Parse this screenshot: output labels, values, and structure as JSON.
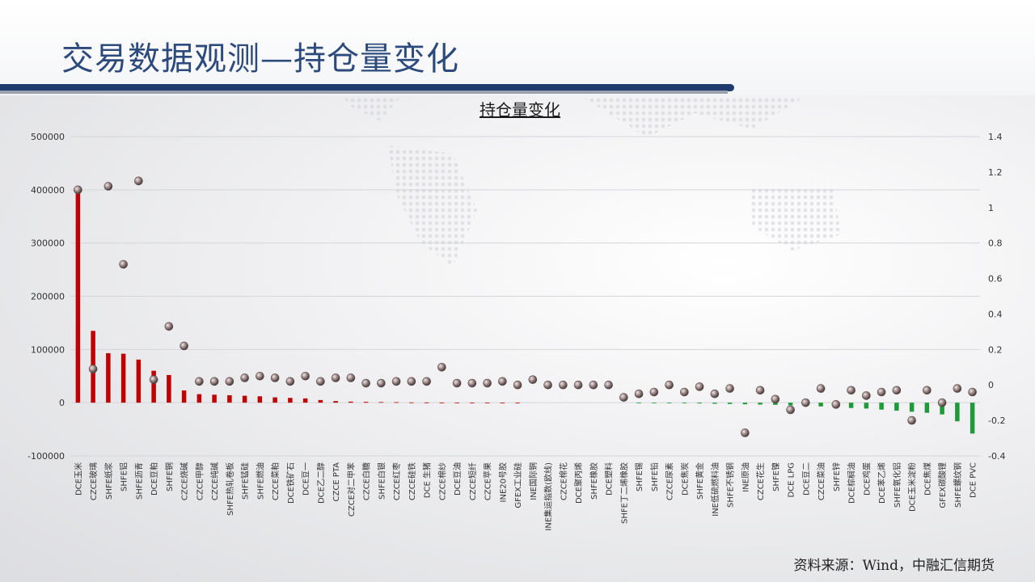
{
  "page": {
    "title": "交易数据观测—持仓量变化",
    "source": "资料来源：Wind，中融汇信期货"
  },
  "colors": {
    "positive_bar": "#c00000",
    "negative_bar": "#1e9a3a",
    "dot": "#8c7878",
    "title": "#2d4a7d",
    "band": "#1f3b6d"
  },
  "chart_data": {
    "type": "bar",
    "title": "持仓量变化",
    "xlabel": "",
    "ylabel": "",
    "ylim": [
      -100000,
      500000
    ],
    "y2lim": [
      -0.4,
      1.4
    ],
    "y_ticks": [
      500000,
      400000,
      300000,
      200000,
      100000,
      0,
      -100000
    ],
    "y2_ticks": [
      "1.4",
      "1.2",
      "1",
      "0.8",
      "0.6",
      "0.4",
      "0.2",
      "0",
      "-0.2",
      "-0.4"
    ],
    "categories": [
      "DCE玉米",
      "CZCE玻璃",
      "SHFE纸浆",
      "SHFE铝",
      "SHFE沥青",
      "DCE豆粕",
      "SHFE铜",
      "CZCE烧碱",
      "CZCE甲醇",
      "CZCE纯碱",
      "SHFE热轧卷板",
      "SHFE锰硅",
      "SHFE燃油",
      "CZCE菜粕",
      "DCE铁矿石",
      "DCE豆一",
      "DCE乙二醇",
      "CZCE PTA",
      "CZCE对二甲苯",
      "CZCE白糖",
      "SHFE白银",
      "CZCE红枣",
      "CZCE硅铁",
      "DCE 生猪",
      "CZCE棉纱",
      "DCE豆油",
      "CZCE短纤",
      "CZCE苹果",
      "INE20号胶",
      "GFEX工业硅",
      "INE国际铜",
      "INE集运指数(欧线)",
      "CZCE棉花",
      "DCE聚丙烯",
      "SHFE橡胶",
      "DCE塑料",
      "SHFE丁二烯橡胶",
      "SHFE锡",
      "SHFE铅",
      "CZCE尿素",
      "DCE焦炭",
      "SHFE黄金",
      "INE低硫燃料油",
      "SHFE不锈钢",
      "INE原油",
      "CZCE花生",
      "SHFE镍",
      "DCE LPG",
      "DCE豆二",
      "CZCE菜油",
      "SHFE锌",
      "DCE棕榈油",
      "DCE鸡蛋",
      "DCE苯乙烯",
      "SHFE氧化铝",
      "DCE玉米淀粉",
      "DCE焦煤",
      "GFEX碳酸锂",
      "SHFE螺纹钢",
      "DCE PVC"
    ],
    "series": [
      {
        "type": "bar",
        "axis": "left",
        "values": [
          400000,
          135000,
          93000,
          92000,
          81000,
          60000,
          52000,
          23000,
          16000,
          15000,
          14000,
          13000,
          12000,
          10000,
          9000,
          8000,
          5000,
          3000,
          2000,
          1500,
          1200,
          1000,
          500,
          400,
          300,
          200,
          100,
          100,
          50,
          50,
          0,
          0,
          0,
          0,
          0,
          0,
          0,
          -300,
          -500,
          -800,
          -1000,
          -1500,
          -2000,
          -2500,
          -3000,
          -3500,
          -4000,
          -5000,
          -6000,
          -7000,
          -9000,
          -10000,
          -11000,
          -13000,
          -15000,
          -17000,
          -19000,
          -22000,
          -35000,
          -58000
        ]
      },
      {
        "type": "scatter",
        "axis": "right",
        "values": [
          1.1,
          0.09,
          1.12,
          0.68,
          1.15,
          0.03,
          0.33,
          0.22,
          0.02,
          0.02,
          0.02,
          0.04,
          0.05,
          0.04,
          0.02,
          0.05,
          0.02,
          0.04,
          0.04,
          0.01,
          0.01,
          0.02,
          0.02,
          0.02,
          0.1,
          0.01,
          0.01,
          0.01,
          0.02,
          0.0,
          0.03,
          0.0,
          0.0,
          0.0,
          0.0,
          0.0,
          -0.07,
          -0.05,
          -0.04,
          0.0,
          -0.04,
          -0.01,
          -0.05,
          -0.02,
          -0.27,
          -0.03,
          -0.08,
          -0.14,
          -0.1,
          -0.02,
          -0.11,
          -0.03,
          -0.06,
          -0.04,
          -0.03,
          -0.2,
          -0.03,
          -0.1,
          -0.02,
          -0.04
        ]
      }
    ]
  }
}
